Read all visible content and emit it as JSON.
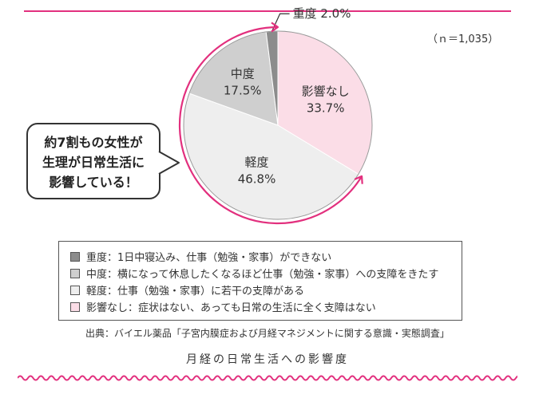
{
  "colors": {
    "accent": "#e2307e",
    "severe": "#8c8c8c",
    "moderate": "#cfcfcf",
    "mild": "#eeeeee",
    "none": "#fbdde7"
  },
  "sample_size": "（ｎ＝1,035）",
  "callout": {
    "line1": "約7割もの女性が",
    "line2": "生理が日常生活に",
    "line3": "影響している！"
  },
  "chart_data": {
    "type": "pie",
    "title": "月経の日常生活への影響度",
    "slices": [
      {
        "name": "影響なし",
        "value": 33.7,
        "label": "33.7%",
        "color": "#fbdde7"
      },
      {
        "name": "軽度",
        "value": 46.8,
        "label": "46.8%",
        "color": "#eeeeee"
      },
      {
        "name": "中度",
        "value": 17.5,
        "label": "17.5%",
        "color": "#cfcfcf"
      },
      {
        "name": "重度",
        "value": 2.0,
        "label": "2.0%",
        "color": "#8c8c8c"
      }
    ],
    "legend": [
      {
        "text": "重度：1日中寝込み、仕事（勉強・家事）ができない",
        "color": "#8c8c8c"
      },
      {
        "text": "中度：横になって休息したくなるほど仕事（勉強・家事）への支障をきたす",
        "color": "#cfcfcf"
      },
      {
        "text": "軽度：仕事（勉強・家事）に若干の支障がある",
        "color": "#eeeeee"
      },
      {
        "text": "影響なし：症状はない、あっても日常の生活に全く支障はない",
        "color": "#fbdde7"
      }
    ]
  },
  "source": "出典：バイエル薬品「子宮内膜症および月経マネジメントに関する意識・実態調査」"
}
